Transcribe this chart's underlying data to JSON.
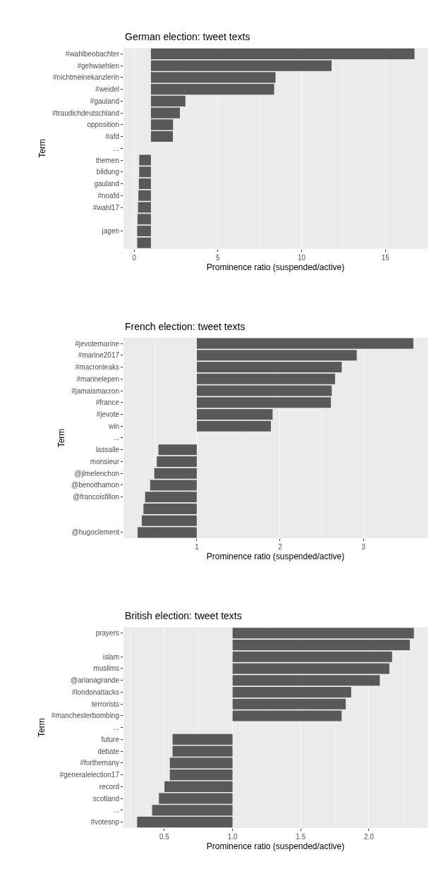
{
  "chart_data": [
    {
      "type": "bar",
      "orientation": "horizontal",
      "title": "German election: tweet texts",
      "xlabel": "Prominence ratio (suspended/active)",
      "ylabel": "Term",
      "color": "#595959",
      "grid": true,
      "categories": [
        "#wahlbeobachter",
        "#gehwaehlen",
        "#nichtmeinekanzlerin",
        "#weidel",
        "#gauland",
        "#traudichdeutschland",
        "opposition",
        "#afd",
        "...",
        "themen",
        "bildung",
        "gauland",
        "#noafd",
        "#wahl17",
        null,
        "jagen",
        null
      ],
      "base": [
        1,
        1,
        1,
        1,
        1,
        1,
        1,
        1,
        null,
        1,
        1,
        1,
        1,
        1,
        1,
        1,
        1
      ],
      "values": [
        15.74,
        10.79,
        7.44,
        7.36,
        2.06,
        1.73,
        1.32,
        1.31,
        null,
        -0.7,
        -0.7,
        -0.72,
        -0.75,
        -0.77,
        -0.8,
        -0.82,
        -0.82
      ],
      "xlim": [
        -0.64,
        17.52
      ],
      "xticks": [
        0,
        5,
        10,
        15
      ]
    },
    {
      "type": "bar",
      "orientation": "horizontal",
      "title": "French election: tweet texts",
      "xlabel": "Prominence ratio (suspended/active)",
      "ylabel": "Term",
      "color": "#595959",
      "grid": true,
      "categories": [
        "#jevotemarine",
        "#marine2017",
        "#macronleaks",
        "#marinelepen",
        "#jamaismacron",
        "#france",
        "#jevote",
        "win",
        "...",
        "lassalle",
        "monsieur",
        "@jlmelenchon",
        "@benoithamon",
        "@francoisfillon",
        null,
        null,
        "@hugoclement"
      ],
      "base": [
        1,
        1,
        1,
        1,
        1,
        1,
        1,
        1,
        null,
        1,
        1,
        1,
        1,
        1,
        1,
        1,
        1
      ],
      "values": [
        2.6,
        1.92,
        1.74,
        1.66,
        1.62,
        1.61,
        0.91,
        0.89,
        null,
        -0.46,
        -0.48,
        -0.51,
        -0.56,
        -0.62,
        -0.64,
        -0.66,
        -0.71
      ],
      "xlim": [
        0.12,
        3.77
      ],
      "xticks": [
        1,
        2,
        3
      ]
    },
    {
      "type": "bar",
      "orientation": "horizontal",
      "title": "British election: tweet texts",
      "xlabel": "Prominence ratio (suspended/active)",
      "ylabel": "Term",
      "color": "#595959",
      "grid": true,
      "categories": [
        "prayers",
        null,
        "islam",
        "muslims",
        "@arianagrande",
        "#londonattacks",
        "terrorists",
        "#manchesterbombing",
        "...",
        "future",
        "debate",
        "#forthemany",
        "#generalelection17",
        "record",
        "scotland",
        "...",
        "#votesnp"
      ],
      "base": [
        1,
        1,
        1,
        1,
        1,
        1,
        1,
        1,
        null,
        1,
        1,
        1,
        1,
        1,
        1,
        1,
        1
      ],
      "values": [
        1.33,
        1.3,
        1.17,
        1.15,
        1.08,
        0.87,
        0.83,
        0.8,
        null,
        -0.44,
        -0.44,
        -0.46,
        -0.46,
        -0.5,
        -0.54,
        -0.59,
        -0.7
      ],
      "xlim": [
        0.2,
        2.43
      ],
      "xticks": [
        {
          "value": 0.5,
          "label": "0.5"
        },
        {
          "value": 1,
          "label": "1.0"
        },
        {
          "value": 1.5,
          "label": "1.5"
        },
        {
          "value": 2,
          "label": "2.0"
        }
      ]
    }
  ]
}
